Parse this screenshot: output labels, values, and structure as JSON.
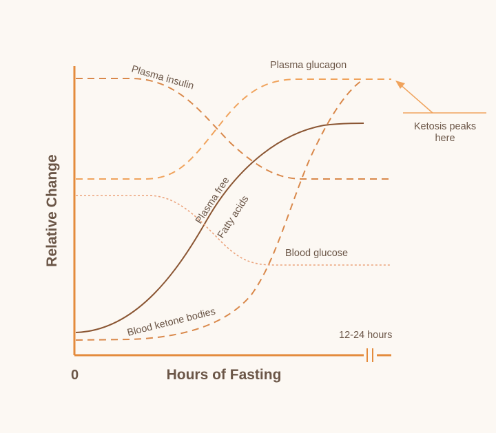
{
  "chart_data": {
    "type": "line",
    "title": "",
    "xlabel": "Hours of Fasting",
    "ylabel": "Relative Change",
    "x_tick_labels": [
      "0",
      "12-24 hours"
    ],
    "x_range": [
      "0",
      "12-24 hours"
    ],
    "grid": false,
    "legend": "none (series labelled directly on curves)",
    "series": [
      {
        "name": "Plasma insulin",
        "style": "dashed",
        "color": "#d9884a",
        "trend": "high, then falls to a lower plateau"
      },
      {
        "name": "Plasma glucagon",
        "style": "dashed",
        "color": "#f0a35c",
        "trend": "rises from mid level to a high plateau"
      },
      {
        "name": "Plasma free Fatty acids",
        "style": "solid",
        "color": "#8a5532",
        "trend": "rises steadily from low to high"
      },
      {
        "name": "Blood glucose",
        "style": "dotted",
        "color": "#eba27a",
        "trend": "falls from mid-high to a lower plateau"
      },
      {
        "name": "Blood ketone bodies",
        "style": "dashed",
        "color": "#d9884a",
        "trend": "low, then rises sharply to peak"
      }
    ],
    "annotation": "Ketosis peaks here",
    "colors": {
      "axis": "#e48b3c",
      "text": "#6b5647",
      "background": "#fcf8f3"
    }
  }
}
